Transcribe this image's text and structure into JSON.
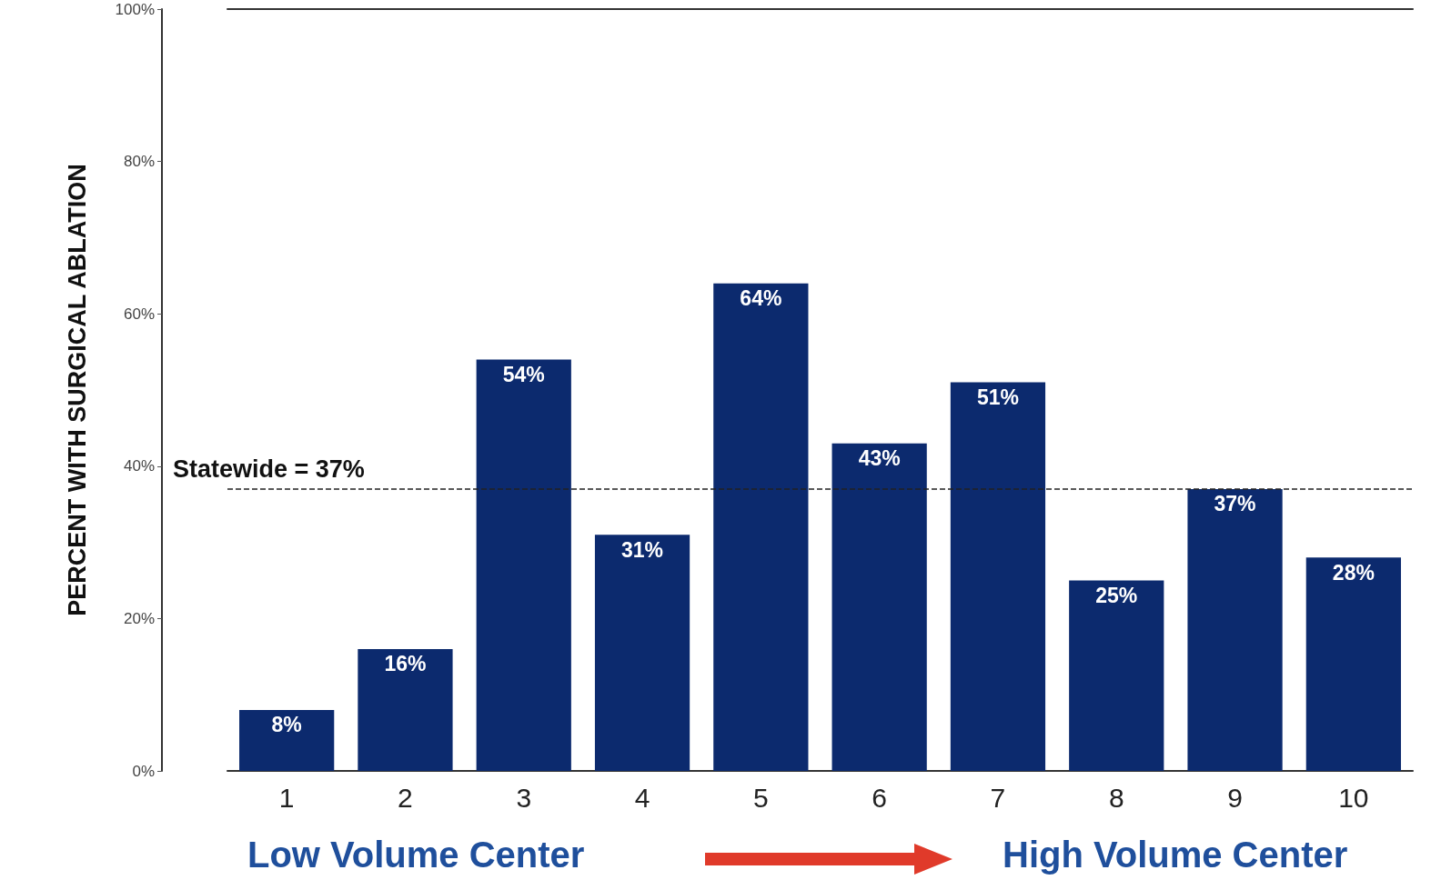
{
  "chart_data": {
    "type": "bar",
    "ylabel": "PERCENT WITH SURGICAL ABLATION",
    "categories": [
      "1",
      "2",
      "3",
      "4",
      "5",
      "6",
      "7",
      "8",
      "9",
      "10"
    ],
    "values": [
      8,
      16,
      54,
      31,
      64,
      43,
      51,
      25,
      37,
      28
    ],
    "value_labels": [
      "8%",
      "16%",
      "54%",
      "31%",
      "64%",
      "43%",
      "51%",
      "25%",
      "37%",
      "28%"
    ],
    "color": "#0c2a6e",
    "ylim": [
      0,
      100
    ],
    "yticks": [
      {
        "value": 0,
        "label": "0%"
      },
      {
        "value": 20,
        "label": "20%"
      },
      {
        "value": 40,
        "label": "40%"
      },
      {
        "value": 60,
        "label": "60%"
      },
      {
        "value": 80,
        "label": "80%"
      },
      {
        "value": 100,
        "label": "100%"
      }
    ],
    "ref_lines": [
      {
        "axis": "y",
        "value": 37,
        "label": "Statewide = 37%",
        "color": "#222222",
        "line_style": "dashed"
      }
    ],
    "annotations": [
      "Low Volume Center",
      "High Volume Center"
    ],
    "grid": false
  }
}
